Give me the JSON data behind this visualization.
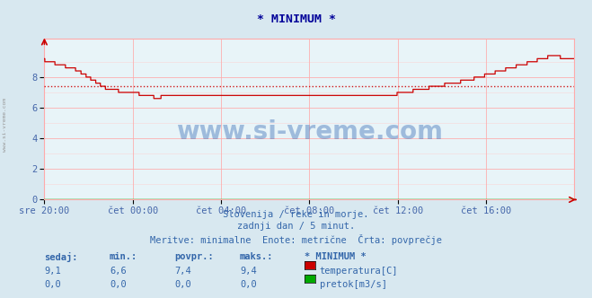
{
  "title": "* MINIMUM *",
  "bg_color": "#d8e8f0",
  "plot_bg_color": "#e8f4f8",
  "grid_color": "#ffaaaa",
  "grid_color_minor": "#ffcccc",
  "avg_line_value": 7.4,
  "avg_line_color": "#cc0000",
  "temp_line_color": "#cc0000",
  "flow_line_color": "#00aa00",
  "ylim": [
    0,
    10.5
  ],
  "yticks": [
    0,
    2,
    4,
    6,
    8
  ],
  "xlabel_color": "#4466aa",
  "ylabel_color": "#4466aa",
  "title_color": "#000099",
  "text_color": "#3366aa",
  "subtitle1": "Slovenija / reke in morje.",
  "subtitle2": "zadnji dan / 5 minut.",
  "subtitle3": "Meritve: minimalne  Enote: metrične  Črta: povprečje",
  "xtick_labels": [
    "sre 20:00",
    "čet 00:00",
    "čet 04:00",
    "čet 08:00",
    "čet 12:00",
    "čet 16:00"
  ],
  "xtick_positions": [
    0,
    240,
    480,
    720,
    960,
    1200
  ],
  "total_points": 1440,
  "watermark": "www.si-vreme.com",
  "watermark_color": "#4477bb",
  "legend_headers": [
    "sedaj:",
    "min.:",
    "povpr.:",
    "maks.:",
    "* MINIMUM *"
  ],
  "legend_temp": [
    "9,1",
    "6,6",
    "7,4",
    "9,4",
    "temperatura[C]"
  ],
  "legend_flow": [
    "0,0",
    "0,0",
    "0,0",
    "0,0",
    "pretok[m3/s]"
  ],
  "temp_color_box": "#cc0000",
  "flow_color_box": "#00aa00",
  "left_label": "www.si-vreme.com",
  "left_label_color": "#999999"
}
